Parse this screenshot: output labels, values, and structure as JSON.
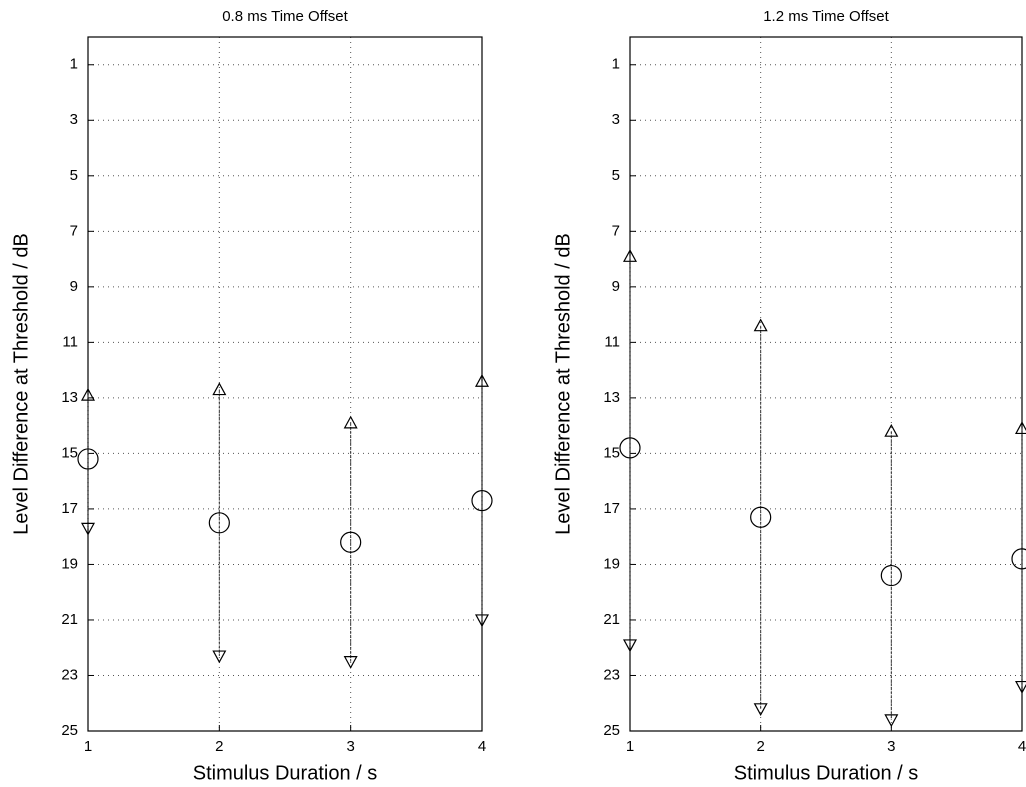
{
  "chart_data": [
    {
      "type": "scatter",
      "title": "0.8 ms Time Offset",
      "x_label": "Stimulus Duration / s",
      "y_label": "Level Difference at Threshold / dB",
      "x": [
        1,
        2,
        3,
        4
      ],
      "xlim": [
        1,
        4
      ],
      "xticks": [
        1,
        2,
        3,
        4
      ],
      "ylim": [
        25,
        0
      ],
      "yticks": [
        1,
        3,
        5,
        7,
        9,
        11,
        13,
        15,
        17,
        19,
        21,
        23,
        25
      ],
      "grid": true,
      "color": "#000000",
      "series": [
        {
          "marker": "circle",
          "values": [
            15.2,
            17.5,
            18.2,
            16.7
          ]
        },
        {
          "marker": "triangle-up",
          "values": [
            12.9,
            12.7,
            13.9,
            12.4
          ]
        },
        {
          "marker": "triangle-down",
          "values": [
            17.7,
            22.3,
            22.5,
            21.0
          ]
        }
      ]
    },
    {
      "type": "scatter",
      "title": "1.2 ms Time Offset",
      "x_label": "Stimulus Duration / s",
      "y_label": "Level Difference at Threshold / dB",
      "x": [
        1,
        2,
        3,
        4
      ],
      "xlim": [
        1,
        4
      ],
      "xticks": [
        1,
        2,
        3,
        4
      ],
      "ylim": [
        25,
        0
      ],
      "yticks": [
        1,
        3,
        5,
        7,
        9,
        11,
        13,
        15,
        17,
        19,
        21,
        23,
        25
      ],
      "grid": true,
      "color": "#000000",
      "series": [
        {
          "marker": "circle",
          "values": [
            14.8,
            17.3,
            19.4,
            18.8
          ]
        },
        {
          "marker": "triangle-up",
          "values": [
            7.9,
            10.4,
            14.2,
            14.1
          ]
        },
        {
          "marker": "triangle-down",
          "values": [
            21.9,
            24.2,
            24.6,
            23.4
          ]
        }
      ]
    }
  ]
}
